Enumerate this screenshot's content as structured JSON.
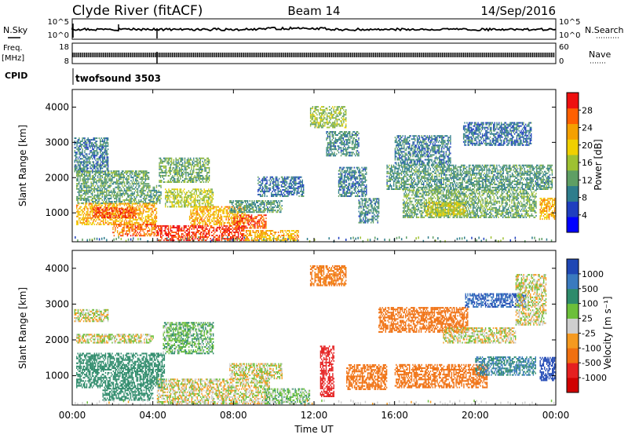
{
  "header": {
    "station": "Clyde River (fitACF)",
    "beam": "Beam 14",
    "date": "14/Sep/2016"
  },
  "top_panels": {
    "nsky_label": "N.Sky",
    "nsearch_label": "N.Search",
    "nsky_ticks": [
      "10^5",
      "10^0"
    ],
    "nsearch_ticks": [
      "10^5",
      "10^0"
    ],
    "freq_label": "Freq.",
    "freq_unit": "[MHz]",
    "freq_ticks": [
      "18",
      "8"
    ],
    "nave_label": "Nave",
    "nave_ticks": [
      "60",
      "0"
    ],
    "cpid_label": "CPID",
    "cpid_value": "twofsound 3503"
  },
  "chart_data": [
    {
      "type": "heatmap",
      "name": "power",
      "xlabel": "",
      "ylabel": "Slant Range [km]",
      "xlim": [
        0,
        24
      ],
      "ylim": [
        180,
        4500
      ],
      "x_ticks": [
        0,
        4,
        8,
        12,
        16,
        20,
        24
      ],
      "y_ticks": [
        1000,
        2000,
        3000,
        4000
      ],
      "y_tick_labels": [
        "1000",
        "2000",
        "3000",
        "4000"
      ],
      "colorbar": {
        "label": "Power [dB]",
        "range": [
          0,
          32
        ],
        "ticks": [
          "4",
          "8",
          "12",
          "16",
          "20",
          "24",
          "28"
        ],
        "tick_values": [
          4,
          8,
          12,
          16,
          20,
          24,
          28
        ],
        "colors": [
          "#0000ff",
          "#1f3fbf",
          "#2e7d8c",
          "#5f9f64",
          "#9ec132",
          "#f0d000",
          "#f5a000",
          "#ff6000",
          "#ee1010"
        ]
      },
      "regions": [
        {
          "x0": 0.1,
          "x1": 1.8,
          "r0": 2150,
          "r1": 3100,
          "v": 9
        },
        {
          "x0": 0.2,
          "x1": 3.8,
          "r0": 1800,
          "r1": 2200,
          "v": 12
        },
        {
          "x0": 0.2,
          "x1": 4.4,
          "r0": 1250,
          "r1": 1750,
          "v": 12
        },
        {
          "x0": 0.2,
          "x1": 4.2,
          "r0": 650,
          "r1": 1250,
          "v": 22
        },
        {
          "x0": 1.0,
          "x1": 3.2,
          "r0": 850,
          "r1": 1150,
          "v": 28
        },
        {
          "x0": 2.0,
          "x1": 4.2,
          "r0": 330,
          "r1": 650,
          "v": 26
        },
        {
          "x0": 4.3,
          "x1": 6.8,
          "r0": 1850,
          "r1": 2550,
          "v": 13
        },
        {
          "x0": 4.6,
          "x1": 7.0,
          "r0": 1150,
          "r1": 1650,
          "v": 17
        },
        {
          "x0": 4.2,
          "x1": 8.5,
          "r0": 200,
          "r1": 650,
          "v": 29
        },
        {
          "x0": 5.8,
          "x1": 8.6,
          "r0": 650,
          "r1": 1150,
          "v": 22
        },
        {
          "x0": 8.0,
          "x1": 9.6,
          "r0": 550,
          "r1": 950,
          "v": 27
        },
        {
          "x0": 8.5,
          "x1": 11.2,
          "r0": 200,
          "r1": 500,
          "v": 22
        },
        {
          "x0": 7.8,
          "x1": 10.4,
          "r0": 1000,
          "r1": 1350,
          "v": 11
        },
        {
          "x0": 9.2,
          "x1": 11.5,
          "r0": 1450,
          "r1": 2000,
          "v": 8
        },
        {
          "x0": 11.8,
          "x1": 13.6,
          "r0": 3400,
          "r1": 4000,
          "v": 15
        },
        {
          "x0": 12.6,
          "x1": 14.2,
          "r0": 2600,
          "r1": 3300,
          "v": 10
        },
        {
          "x0": 13.2,
          "x1": 14.6,
          "r0": 1450,
          "r1": 2300,
          "v": 9
        },
        {
          "x0": 14.2,
          "x1": 15.2,
          "r0": 700,
          "r1": 1400,
          "v": 10
        },
        {
          "x0": 16.0,
          "x1": 18.8,
          "r0": 2350,
          "r1": 3200,
          "v": 9
        },
        {
          "x0": 15.6,
          "x1": 23.8,
          "r0": 1650,
          "r1": 2350,
          "v": 11
        },
        {
          "x0": 16.4,
          "x1": 23.0,
          "r0": 850,
          "r1": 1650,
          "v": 13
        },
        {
          "x0": 17.5,
          "x1": 19.5,
          "r0": 900,
          "r1": 1300,
          "v": 18
        },
        {
          "x0": 19.4,
          "x1": 22.8,
          "r0": 2900,
          "r1": 3550,
          "v": 8
        },
        {
          "x0": 23.2,
          "x1": 24.0,
          "r0": 800,
          "r1": 1400,
          "v": 22
        }
      ]
    },
    {
      "type": "heatmap",
      "name": "velocity",
      "xlabel": "Time UT",
      "ylabel": "Slant Range [km]",
      "xlim": [
        0,
        24
      ],
      "ylim": [
        180,
        4500
      ],
      "x_ticks": [
        0,
        4,
        8,
        12,
        16,
        20,
        24
      ],
      "x_tick_labels": [
        "00:00",
        "04:00",
        "08:00",
        "12:00",
        "16:00",
        "20:00",
        "00:00"
      ],
      "y_ticks": [
        1000,
        2000,
        3000,
        4000
      ],
      "y_tick_labels": [
        "1000",
        "2000",
        "3000",
        "4000"
      ],
      "colorbar": {
        "label": "Velocity [m s⁻¹]",
        "ticks": [
          "1000",
          "500",
          "100",
          "25",
          "-25",
          "-100",
          "-500",
          "-1000"
        ],
        "colors": [
          "#1f47b4",
          "#3a7abf",
          "#2e8b6b",
          "#6cbf3a",
          "#cfcfcf",
          "#f59a20",
          "#f07010",
          "#e52020",
          "#d00000"
        ]
      },
      "regions": [
        {
          "x0": 0.1,
          "x1": 1.8,
          "r0": 2500,
          "r1": 2850,
          "v": 0
        },
        {
          "x0": 0.2,
          "x1": 4.0,
          "r0": 1900,
          "r1": 2150,
          "v": 0
        },
        {
          "x0": 0.2,
          "x1": 4.6,
          "r0": 650,
          "r1": 1600,
          "v": 350
        },
        {
          "x0": 1.5,
          "x1": 4.0,
          "r0": 300,
          "r1": 650,
          "v": 400
        },
        {
          "x0": 4.5,
          "x1": 7.0,
          "r0": 1600,
          "r1": 2500,
          "v": 80
        },
        {
          "x0": 4.2,
          "x1": 9.8,
          "r0": 200,
          "r1": 900,
          "v": 0
        },
        {
          "x0": 7.8,
          "x1": 10.4,
          "r0": 900,
          "r1": 1350,
          "v": 0
        },
        {
          "x0": 9.5,
          "x1": 11.8,
          "r0": 200,
          "r1": 650,
          "v": 60
        },
        {
          "x0": 11.8,
          "x1": 13.6,
          "r0": 3500,
          "r1": 4050,
          "v": -150
        },
        {
          "x0": 12.3,
          "x1": 13.0,
          "r0": 400,
          "r1": 1800,
          "v": -700
        },
        {
          "x0": 13.6,
          "x1": 15.6,
          "r0": 600,
          "r1": 1300,
          "v": -200
        },
        {
          "x0": 15.2,
          "x1": 19.6,
          "r0": 2200,
          "r1": 2900,
          "v": -200
        },
        {
          "x0": 16.0,
          "x1": 20.6,
          "r0": 650,
          "r1": 1300,
          "v": -250
        },
        {
          "x0": 18.4,
          "x1": 22.0,
          "r0": 1900,
          "r1": 2350,
          "v": 0
        },
        {
          "x0": 20.0,
          "x1": 23.0,
          "r0": 1000,
          "r1": 1500,
          "v": 500
        },
        {
          "x0": 19.5,
          "x1": 22.5,
          "r0": 2900,
          "r1": 3300,
          "v": 1000
        },
        {
          "x0": 22.0,
          "x1": 23.5,
          "r0": 2400,
          "r1": 3800,
          "v": 0
        },
        {
          "x0": 23.2,
          "x1": 24.0,
          "r0": 850,
          "r1": 1500,
          "v": 1100
        }
      ]
    }
  ]
}
